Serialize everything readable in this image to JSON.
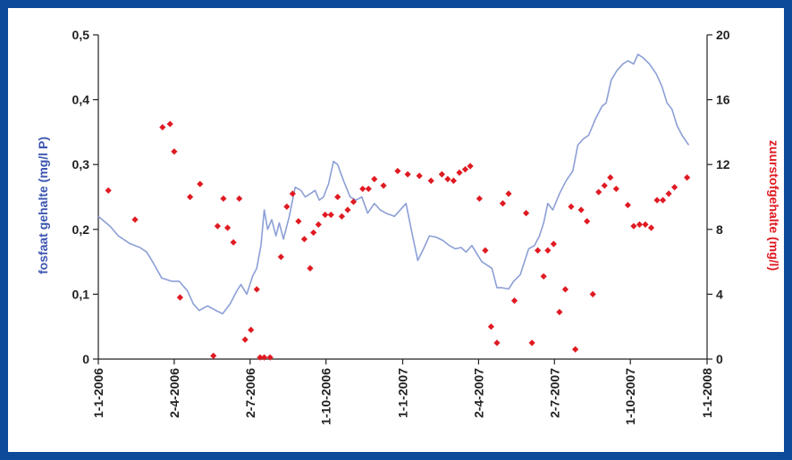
{
  "colors": {
    "frame": "#0d4a97",
    "phosphate": "#8c9fd6",
    "oxygen": "#e01a22",
    "left_axis_title": "#3b55b0",
    "right_axis_title": "#e01a22",
    "axis": "#222222"
  },
  "chart_data": {
    "type": "line",
    "xlabel": "",
    "x_ticks": [
      "1-1-2006",
      "2-4-2006",
      "2-7-2006",
      "1-10-2006",
      "1-1-2007",
      "2-4-2007",
      "2-7-2007",
      "1-10-2007",
      "1-1-2008"
    ],
    "xlim": [
      "2006-01-01",
      "2008-01-01"
    ],
    "ylabel_left": "fosfaat gehalte (mg/l P)",
    "ylabel_right": "zuurstofgehalte (mg/l)",
    "ylim_left": [
      0,
      0.5
    ],
    "ylim_right": [
      0,
      20
    ],
    "y_ticks_left": [
      "0",
      "0,1",
      "0,2",
      "0,3",
      "0,4",
      "0,5"
    ],
    "y_ticks_right": [
      "0",
      "4",
      "8",
      "12",
      "16",
      "20"
    ],
    "grid": false,
    "legend": "none",
    "series": [
      {
        "type": "line",
        "axis": "left",
        "points": [
          [
            "2006-01-01",
            0.22
          ],
          [
            "2006-01-15",
            0.205
          ],
          [
            "2006-01-25",
            0.19
          ],
          [
            "2006-02-08",
            0.178
          ],
          [
            "2006-02-20",
            0.172
          ],
          [
            "2006-02-28",
            0.165
          ],
          [
            "2006-03-08",
            0.148
          ],
          [
            "2006-03-18",
            0.125
          ],
          [
            "2006-03-30",
            0.12
          ],
          [
            "2006-04-08",
            0.12
          ],
          [
            "2006-04-18",
            0.105
          ],
          [
            "2006-04-25",
            0.085
          ],
          [
            "2006-05-02",
            0.075
          ],
          [
            "2006-05-12",
            0.082
          ],
          [
            "2006-05-22",
            0.075
          ],
          [
            "2006-05-30",
            0.07
          ],
          [
            "2006-06-08",
            0.085
          ],
          [
            "2006-06-16",
            0.105
          ],
          [
            "2006-06-21",
            0.115
          ],
          [
            "2006-06-28",
            0.1
          ],
          [
            "2006-07-05",
            0.128
          ],
          [
            "2006-07-10",
            0.14
          ],
          [
            "2006-07-15",
            0.175
          ],
          [
            "2006-07-19",
            0.23
          ],
          [
            "2006-07-23",
            0.2
          ],
          [
            "2006-07-28",
            0.215
          ],
          [
            "2006-08-02",
            0.19
          ],
          [
            "2006-08-06",
            0.21
          ],
          [
            "2006-08-11",
            0.185
          ],
          [
            "2006-08-18",
            0.22
          ],
          [
            "2006-08-25",
            0.265
          ],
          [
            "2006-09-01",
            0.26
          ],
          [
            "2006-09-06",
            0.25
          ],
          [
            "2006-09-12",
            0.255
          ],
          [
            "2006-09-18",
            0.26
          ],
          [
            "2006-09-23",
            0.245
          ],
          [
            "2006-09-28",
            0.25
          ],
          [
            "2006-10-04",
            0.27
          ],
          [
            "2006-10-10",
            0.305
          ],
          [
            "2006-10-15",
            0.3
          ],
          [
            "2006-10-22",
            0.275
          ],
          [
            "2006-10-30",
            0.25
          ],
          [
            "2006-11-06",
            0.245
          ],
          [
            "2006-11-13",
            0.25
          ],
          [
            "2006-11-20",
            0.225
          ],
          [
            "2006-11-28",
            0.24
          ],
          [
            "2006-12-05",
            0.23
          ],
          [
            "2006-12-12",
            0.225
          ],
          [
            "2006-12-18",
            0.222
          ],
          [
            "2006-12-22",
            0.22
          ],
          [
            "2007-01-05",
            0.24
          ],
          [
            "2007-01-12",
            0.195
          ],
          [
            "2007-01-19",
            0.152
          ],
          [
            "2007-01-26",
            0.17
          ],
          [
            "2007-02-02",
            0.19
          ],
          [
            "2007-02-10",
            0.188
          ],
          [
            "2007-02-18",
            0.183
          ],
          [
            "2007-02-26",
            0.175
          ],
          [
            "2007-03-05",
            0.17
          ],
          [
            "2007-03-12",
            0.172
          ],
          [
            "2007-03-18",
            0.165
          ],
          [
            "2007-03-25",
            0.175
          ],
          [
            "2007-04-01",
            0.16
          ],
          [
            "2007-04-06",
            0.15
          ],
          [
            "2007-04-12",
            0.145
          ],
          [
            "2007-04-18",
            0.14
          ],
          [
            "2007-04-24",
            0.11
          ],
          [
            "2007-04-30",
            0.11
          ],
          [
            "2007-05-08",
            0.108
          ],
          [
            "2007-05-14",
            0.12
          ],
          [
            "2007-05-22",
            0.13
          ],
          [
            "2007-06-01",
            0.17
          ],
          [
            "2007-06-08",
            0.175
          ],
          [
            "2007-06-14",
            0.19
          ],
          [
            "2007-06-19",
            0.21
          ],
          [
            "2007-06-24",
            0.24
          ],
          [
            "2007-06-30",
            0.23
          ],
          [
            "2007-07-08",
            0.255
          ],
          [
            "2007-07-16",
            0.275
          ],
          [
            "2007-07-24",
            0.29
          ],
          [
            "2007-07-30",
            0.33
          ],
          [
            "2007-08-06",
            0.34
          ],
          [
            "2007-08-12",
            0.345
          ],
          [
            "2007-08-20",
            0.37
          ],
          [
            "2007-08-28",
            0.39
          ],
          [
            "2007-09-02",
            0.395
          ],
          [
            "2007-09-08",
            0.43
          ],
          [
            "2007-09-15",
            0.445
          ],
          [
            "2007-09-22",
            0.455
          ],
          [
            "2007-09-28",
            0.46
          ],
          [
            "2007-10-05",
            0.455
          ],
          [
            "2007-10-10",
            0.47
          ],
          [
            "2007-10-16",
            0.465
          ],
          [
            "2007-10-24",
            0.455
          ],
          [
            "2007-11-01",
            0.44
          ],
          [
            "2007-11-08",
            0.42
          ],
          [
            "2007-11-14",
            0.395
          ],
          [
            "2007-11-20",
            0.385
          ],
          [
            "2007-11-26",
            0.36
          ],
          [
            "2007-12-02",
            0.345
          ],
          [
            "2007-12-10",
            0.33
          ]
        ]
      },
      {
        "type": "scatter",
        "axis": "right",
        "points": [
          [
            "2006-01-13",
            10.4
          ],
          [
            "2006-02-14",
            8.6
          ],
          [
            "2006-03-19",
            14.3
          ],
          [
            "2006-03-28",
            14.5
          ],
          [
            "2006-04-02",
            12.8
          ],
          [
            "2006-04-09",
            3.8
          ],
          [
            "2006-04-21",
            10.0
          ],
          [
            "2006-05-03",
            10.8
          ],
          [
            "2006-05-19",
            0.2
          ],
          [
            "2006-05-24",
            8.2
          ],
          [
            "2006-05-31",
            9.9
          ],
          [
            "2006-06-05",
            8.1
          ],
          [
            "2006-06-12",
            7.2
          ],
          [
            "2006-06-19",
            9.9
          ],
          [
            "2006-06-26",
            1.2
          ],
          [
            "2006-07-03",
            1.8
          ],
          [
            "2006-07-10",
            4.3
          ],
          [
            "2006-07-14",
            0.1
          ],
          [
            "2006-07-19",
            0.1
          ],
          [
            "2006-07-26",
            0.1
          ],
          [
            "2006-08-08",
            6.3
          ],
          [
            "2006-08-15",
            9.4
          ],
          [
            "2006-08-22",
            10.2
          ],
          [
            "2006-08-29",
            8.5
          ],
          [
            "2006-09-05",
            7.4
          ],
          [
            "2006-09-12",
            5.6
          ],
          [
            "2006-09-16",
            7.8
          ],
          [
            "2006-09-22",
            8.3
          ],
          [
            "2006-09-30",
            8.9
          ],
          [
            "2006-10-07",
            8.9
          ],
          [
            "2006-10-15",
            10.0
          ],
          [
            "2006-10-20",
            8.8
          ],
          [
            "2006-10-27",
            9.2
          ],
          [
            "2006-11-03",
            9.7
          ],
          [
            "2006-11-14",
            10.5
          ],
          [
            "2006-11-21",
            10.5
          ],
          [
            "2006-11-28",
            11.1
          ],
          [
            "2006-12-09",
            10.7
          ],
          [
            "2006-12-26",
            11.6
          ],
          [
            "2007-01-07",
            11.4
          ],
          [
            "2007-01-21",
            11.3
          ],
          [
            "2007-02-04",
            11.0
          ],
          [
            "2007-02-17",
            11.4
          ],
          [
            "2007-02-24",
            11.1
          ],
          [
            "2007-03-03",
            11.0
          ],
          [
            "2007-03-10",
            11.5
          ],
          [
            "2007-03-17",
            11.7
          ],
          [
            "2007-03-23",
            11.9
          ],
          [
            "2007-04-03",
            9.9
          ],
          [
            "2007-04-10",
            6.7
          ],
          [
            "2007-04-17",
            2.0
          ],
          [
            "2007-04-24",
            1.0
          ],
          [
            "2007-05-01",
            9.6
          ],
          [
            "2007-05-08",
            10.2
          ],
          [
            "2007-05-15",
            3.6
          ],
          [
            "2007-05-29",
            9.0
          ],
          [
            "2007-06-05",
            1.0
          ],
          [
            "2007-06-12",
            6.7
          ],
          [
            "2007-06-19",
            5.1
          ],
          [
            "2007-06-24",
            6.7
          ],
          [
            "2007-07-01",
            7.1
          ],
          [
            "2007-07-08",
            2.9
          ],
          [
            "2007-07-15",
            4.3
          ],
          [
            "2007-07-22",
            9.4
          ],
          [
            "2007-07-27",
            0.6
          ],
          [
            "2007-08-03",
            9.2
          ],
          [
            "2007-08-10",
            8.5
          ],
          [
            "2007-08-17",
            4.0
          ],
          [
            "2007-08-24",
            10.3
          ],
          [
            "2007-08-31",
            10.7
          ],
          [
            "2007-09-07",
            11.2
          ],
          [
            "2007-09-14",
            10.5
          ],
          [
            "2007-09-28",
            9.5
          ],
          [
            "2007-10-05",
            8.2
          ],
          [
            "2007-10-12",
            8.3
          ],
          [
            "2007-10-19",
            8.3
          ],
          [
            "2007-10-26",
            8.1
          ],
          [
            "2007-11-02",
            9.8
          ],
          [
            "2007-11-09",
            9.8
          ],
          [
            "2007-11-16",
            10.2
          ],
          [
            "2007-11-23",
            10.6
          ],
          [
            "2007-12-08",
            11.2
          ]
        ]
      }
    ]
  }
}
